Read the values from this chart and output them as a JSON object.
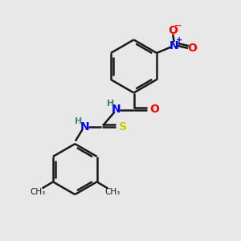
{
  "background_color": "#e8e8e8",
  "bond_color": "#1a1a1a",
  "N_color": "#0000ff",
  "O_color": "#ff0000",
  "S_color": "#cccc00",
  "H_color": "#408080",
  "figsize": [
    3.0,
    3.0
  ],
  "dpi": 100,
  "xlim": [
    0,
    10
  ],
  "ylim": [
    0,
    10
  ]
}
